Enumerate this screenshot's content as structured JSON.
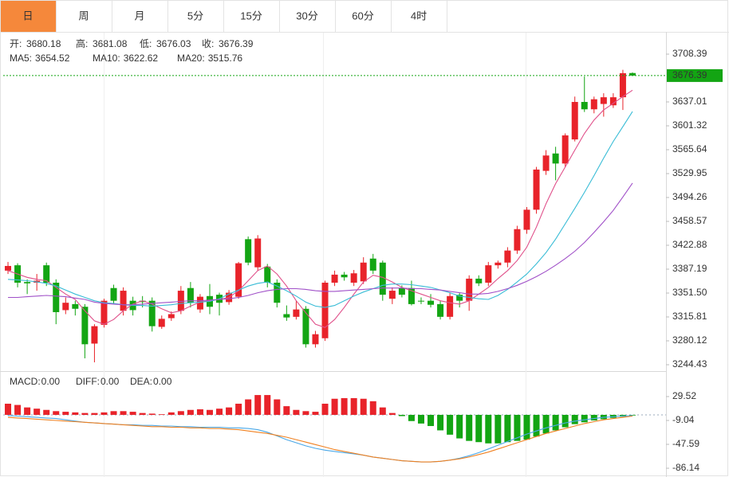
{
  "tabs": [
    "日",
    "周",
    "月",
    "5分",
    "15分",
    "30分",
    "60分",
    "4时"
  ],
  "chart_data": [
    {
      "type": "candlestick",
      "ohlc_labels": [
        "开:",
        "高:",
        "低:",
        "收:"
      ],
      "up_color": "#e8232a",
      "down_color": "#13a513",
      "open": [
        3385,
        3393,
        3368,
        3367,
        3393,
        3367,
        3326,
        3335,
        3331,
        3276,
        3304,
        3359,
        3325,
        3340,
        3340,
        3340,
        3301,
        3314,
        3325,
        3359,
        3327,
        3347,
        3349,
        3338,
        3346,
        3432,
        3390,
        3391,
        3367,
        3320,
        3316,
        3328,
        3275,
        3284,
        3367,
        3379,
        3367,
        3369,
        3403,
        3397,
        3343,
        3359,
        3359,
        3340,
        3340,
        3335,
        3316,
        3349,
        3340,
        3373,
        3367,
        3393,
        3397,
        3415,
        3446,
        3476,
        3534,
        3560,
        3545,
        3581,
        3637,
        3626,
        3634,
        3632,
        3644,
        3680.18
      ],
      "high": [
        3398,
        3396,
        3372,
        3380,
        3397,
        3372,
        3345,
        3340,
        3335,
        3305,
        3343,
        3364,
        3360,
        3346,
        3347,
        3345,
        3318,
        3324,
        3362,
        3368,
        3350,
        3365,
        3352,
        3356,
        3398,
        3436,
        3438,
        3395,
        3372,
        3333,
        3340,
        3332,
        3295,
        3370,
        3385,
        3383,
        3386,
        3405,
        3410,
        3400,
        3360,
        3363,
        3370,
        3345,
        3350,
        3340,
        3352,
        3352,
        3378,
        3378,
        3398,
        3400,
        3420,
        3452,
        3480,
        3540,
        3565,
        3570,
        3590,
        3645,
        3675,
        3645,
        3650,
        3650,
        3685,
        3681.08
      ],
      "low": [
        3380,
        3360,
        3350,
        3355,
        3362,
        3305,
        3320,
        3318,
        3254,
        3248,
        3300,
        3336,
        3318,
        3318,
        3330,
        3294,
        3298,
        3310,
        3320,
        3330,
        3322,
        3320,
        3318,
        3334,
        3343,
        3393,
        3385,
        3360,
        3330,
        3310,
        3312,
        3270,
        3270,
        3280,
        3362,
        3370,
        3362,
        3365,
        3380,
        3340,
        3335,
        3345,
        3333,
        3335,
        3330,
        3312,
        3312,
        3330,
        3325,
        3362,
        3362,
        3388,
        3390,
        3410,
        3440,
        3470,
        3528,
        3520,
        3540,
        3578,
        3622,
        3620,
        3615,
        3628,
        3625,
        3676.03
      ],
      "close": [
        3392,
        3367,
        3366,
        3370,
        3367,
        3323,
        3337,
        3328,
        3275,
        3302,
        3340,
        3340,
        3355,
        3326,
        3338,
        3302,
        3313,
        3320,
        3355,
        3337,
        3346,
        3331,
        3337,
        3352,
        3396,
        3397,
        3433,
        3367,
        3337,
        3315,
        3327,
        3275,
        3290,
        3367,
        3379,
        3375,
        3381,
        3397,
        3385,
        3349,
        3355,
        3349,
        3335,
        3339,
        3334,
        3316,
        3347,
        3340,
        3373,
        3366,
        3393,
        3397,
        3415,
        3447,
        3476,
        3536,
        3557,
        3545,
        3587,
        3637,
        3626,
        3641,
        3644,
        3644,
        3680,
        3676.39
      ],
      "series": [
        {
          "name": "MA5:",
          "color": "#e0508a",
          "values": [
            3385,
            3380,
            3375,
            3372,
            3370,
            3360,
            3350,
            3342,
            3325,
            3310,
            3305,
            3312,
            3325,
            3335,
            3340,
            3335,
            3328,
            3322,
            3325,
            3332,
            3338,
            3340,
            3342,
            3345,
            3355,
            3370,
            3385,
            3392,
            3380,
            3362,
            3340,
            3322,
            3305,
            3300,
            3312,
            3330,
            3350,
            3368,
            3378,
            3375,
            3368,
            3360,
            3355,
            3350,
            3345,
            3340,
            3337,
            3335,
            3340,
            3350,
            3360,
            3373,
            3385,
            3400,
            3420,
            3450,
            3485,
            3515,
            3540,
            3565,
            3590,
            3610,
            3625,
            3635,
            3645,
            3654.52
          ]
        },
        {
          "name": "MA10:",
          "color": "#38bcd6",
          "values": [
            3372,
            3371,
            3370,
            3368,
            3366,
            3362,
            3356,
            3350,
            3345,
            3340,
            3337,
            3336,
            3334,
            3333,
            3333,
            3332,
            3333,
            3334,
            3336,
            3337,
            3338,
            3339,
            3343,
            3350,
            3356,
            3362,
            3366,
            3368,
            3362,
            3355,
            3347,
            3338,
            3332,
            3330,
            3333,
            3340,
            3347,
            3353,
            3358,
            3363,
            3365,
            3365,
            3364,
            3362,
            3360,
            3356,
            3352,
            3347,
            3345,
            3343,
            3342,
            3348,
            3357,
            3368,
            3380,
            3395,
            3412,
            3432,
            3455,
            3478,
            3502,
            3527,
            3553,
            3578,
            3600,
            3622.62
          ]
        },
        {
          "name": "MA20:",
          "color": "#a050c8",
          "values": [
            3345,
            3345,
            3346,
            3347,
            3348,
            3347,
            3346,
            3344,
            3342,
            3338,
            3336,
            3335,
            3334,
            3334,
            3335,
            3336,
            3337,
            3338,
            3339,
            3340,
            3340,
            3341,
            3342,
            3343,
            3345,
            3348,
            3352,
            3355,
            3357,
            3358,
            3358,
            3357,
            3355,
            3354,
            3354,
            3355,
            3356,
            3357,
            3358,
            3359,
            3359,
            3359,
            3358,
            3358,
            3357,
            3356,
            3354,
            3352,
            3350,
            3350,
            3351,
            3354,
            3358,
            3363,
            3369,
            3376,
            3384,
            3393,
            3403,
            3414,
            3427,
            3442,
            3458,
            3475,
            3495,
            3515.76
          ]
        }
      ],
      "ylim": [
        3236.12,
        3741.7
      ],
      "yticks": [
        3708.39,
        3637.01,
        3601.32,
        3565.64,
        3529.95,
        3494.26,
        3458.57,
        3422.88,
        3387.19,
        {
          "value": 3351.5,
          "label": "3351.50"
        },
        3315.81,
        3280.12,
        3244.43
      ]
    },
    {
      "type": "bar",
      "series": [
        {
          "name": "MACD:",
          "kind": "bar",
          "color": "#e8232a",
          "down_color": "#13a513",
          "legend_value": {
            "value": 0,
            "label": "0.00"
          },
          "values": [
            18,
            16,
            12,
            10,
            8,
            6,
            5,
            4,
            3,
            3,
            4,
            6,
            6,
            5,
            3,
            2,
            1,
            4,
            6,
            8,
            9,
            8,
            10,
            12,
            18,
            25,
            32,
            32,
            25,
            14,
            8,
            6,
            5,
            18,
            26,
            27,
            27,
            26,
            22,
            12,
            3,
            -2,
            -10,
            -14,
            -18,
            -25,
            -32,
            -38,
            -42,
            -44,
            -46,
            -46,
            -44,
            -42,
            -40,
            -35,
            -30,
            -25,
            -20,
            -15,
            -12,
            -9,
            -7,
            -5,
            -3,
            -1
          ]
        },
        {
          "name": "DIFF:",
          "kind": "line",
          "color": "#4aa8e8",
          "legend_value": {
            "value": 0,
            "label": "0.00"
          },
          "values": [
            -1,
            -2,
            -3,
            -4,
            -5,
            -6,
            -8,
            -10,
            -12,
            -13,
            -14,
            -15,
            -16,
            -16,
            -17,
            -17,
            -18,
            -18,
            -19,
            -19,
            -20,
            -20,
            -20,
            -21,
            -21,
            -22,
            -24,
            -28,
            -34,
            -40,
            -45,
            -50,
            -54,
            -57,
            -59,
            -61,
            -63,
            -65,
            -68,
            -70,
            -72,
            -74,
            -75,
            -76,
            -76,
            -75,
            -73,
            -70,
            -66,
            -61,
            -55,
            -49,
            -43,
            -37,
            -31,
            -26,
            -21,
            -17,
            -13,
            -10,
            -8,
            -6,
            -4,
            -3,
            -2,
            -1
          ]
        },
        {
          "name": "DEA:",
          "kind": "line",
          "color": "#f08020",
          "legend_value": {
            "value": 0,
            "label": "0.00"
          },
          "values": [
            -4,
            -5,
            -6,
            -7,
            -8,
            -9,
            -10,
            -11,
            -12,
            -13,
            -14,
            -15,
            -16,
            -17,
            -18,
            -19,
            -19,
            -20,
            -20,
            -21,
            -21,
            -22,
            -22,
            -23,
            -24,
            -26,
            -28,
            -30,
            -33,
            -36,
            -40,
            -44,
            -48,
            -52,
            -56,
            -59,
            -62,
            -65,
            -68,
            -70,
            -72,
            -74,
            -75,
            -76,
            -76,
            -75,
            -73,
            -71,
            -68,
            -64,
            -60,
            -55,
            -50,
            -45,
            -40,
            -35,
            -30,
            -26,
            -22,
            -18,
            -14,
            -11,
            -8,
            -6,
            -4,
            -2
          ]
        }
      ],
      "ylim": [
        -98.98,
        65.5
      ],
      "yticks": [
        29.52,
        -9.04,
        -47.59,
        -86.14
      ]
    }
  ]
}
